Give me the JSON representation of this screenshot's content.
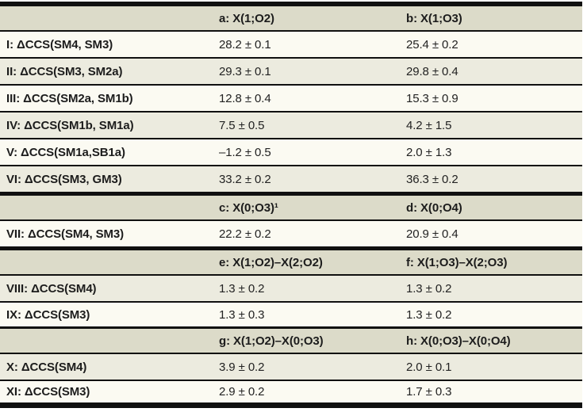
{
  "colors": {
    "page_bg": "#ffffff",
    "header_bg": "#dcdbc9",
    "row_light": "#fbfaf2",
    "row_shaded": "#ecebdf",
    "rule": "#101010",
    "text": "#1c1c1c"
  },
  "table": {
    "sections": [
      {
        "header": {
          "a": "a: X(1;O2)",
          "b": "b: X(1;O3)"
        },
        "rows": [
          {
            "label": "I: ΔCCS(SM4, SM3)",
            "a": "28.2 ± 0.1",
            "b": "25.4 ± 0.2"
          },
          {
            "label": "II: ΔCCS(SM3, SM2a)",
            "a": "29.3 ± 0.1",
            "b": "29.8 ± 0.4"
          },
          {
            "label": "III: ΔCCS(SM2a, SM1b)",
            "a": "12.8 ± 0.4",
            "b": "15.3 ± 0.9"
          },
          {
            "label": "IV: ΔCCS(SM1b, SM1a)",
            "a": "7.5 ± 0.5",
            "b": "4.2 ± 1.5"
          },
          {
            "label": "V: ΔCCS(SM1a,SB1a)",
            "a": "–1.2 ± 0.5",
            "b": "2.0 ± 1.3"
          },
          {
            "label": "VI: ΔCCS(SM3, GM3)",
            "a": "33.2 ± 0.2",
            "b": "36.3 ± 0.2"
          }
        ]
      },
      {
        "header": {
          "a": "c: X(0;O3)¹",
          "b": "d: X(0;O4)"
        },
        "rows": [
          {
            "label": "VII: ΔCCS(SM4, SM3)",
            "a": "22.2 ± 0.2",
            "b": "20.9 ± 0.4"
          }
        ]
      },
      {
        "header": {
          "a": "e: X(1;O2)–X(2;O2)",
          "b": "f: X(1;O3)–X(2;O3)"
        },
        "rows": [
          {
            "label": "VIII: ΔCCS(SM4)",
            "a": "1.3 ± 0.2",
            "b": "1.3 ± 0.2"
          },
          {
            "label": "IX: ΔCCS(SM3)",
            "a": "1.3 ± 0.3",
            "b": "1.3 ± 0.2"
          }
        ]
      },
      {
        "header": {
          "a": "g: X(1;O2)–X(0;O3)",
          "b": "h: X(0;O3)–X(0;O4)"
        },
        "rows": [
          {
            "label": "X: ΔCCS(SM4)",
            "a": "3.9 ± 0.2",
            "b": "2.0 ± 0.1"
          },
          {
            "label": "XI: ΔCCS(SM3)",
            "a": "2.9 ± 0.2",
            "b": "1.7 ± 0.3"
          }
        ]
      }
    ]
  }
}
